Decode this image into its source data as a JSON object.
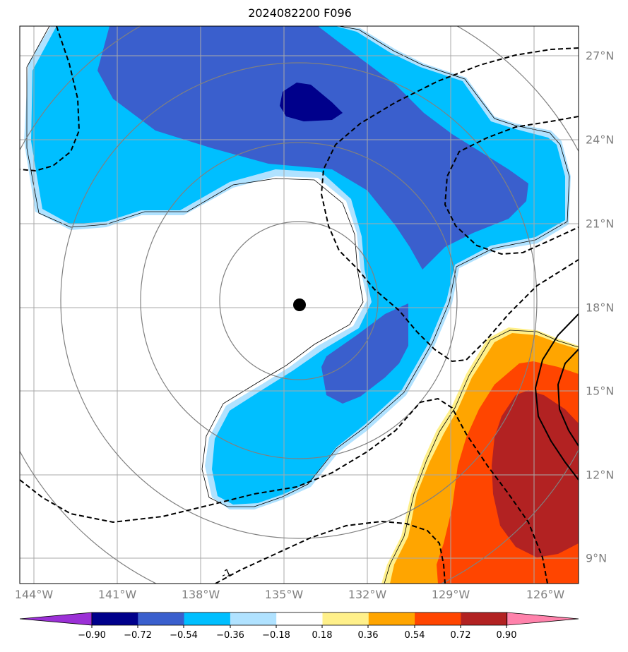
{
  "title": "2024082200 F096",
  "lon_labels": [
    "144°W",
    "141°W",
    "138°W",
    "135°W",
    "132°W",
    "129°W",
    "126°W"
  ],
  "lat_labels": [
    "27°N",
    "24°N",
    "21°N",
    "18°N",
    "15°N",
    "12°N",
    "9°N"
  ],
  "contour_label": "-1",
  "colorbar": {
    "ticks": [
      "−0.90",
      "−0.72",
      "−0.54",
      "−0.36",
      "−0.18",
      "0.18",
      "0.36",
      "0.54",
      "0.72",
      "0.90"
    ],
    "colors": [
      "#9b30d6",
      "#00008b",
      "#3a5fcd",
      "#00bfff",
      "#b0e2ff",
      "#ffffff",
      "#fff08a",
      "#ffa500",
      "#ff4500",
      "#b22222",
      "#ff82ab"
    ]
  },
  "storm_center": {
    "lon": -134.5,
    "lat": 18.1
  }
}
